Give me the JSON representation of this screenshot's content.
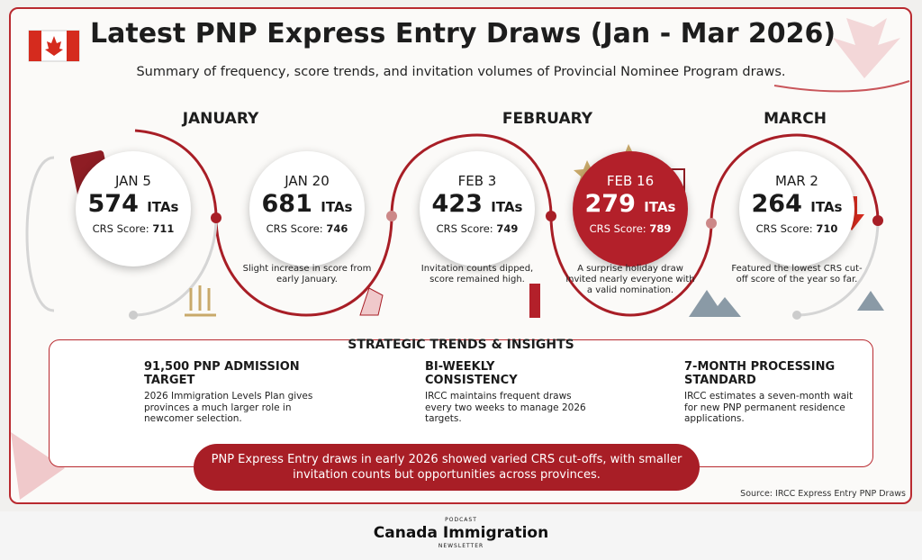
{
  "header": {
    "title": "Latest PNP Express Entry Draws (Jan - Mar 2026)",
    "subtitle": "Summary of frequency, score trends, and invitation volumes of Provincial Nominee Program draws."
  },
  "months": [
    "JANUARY",
    "FEBRUARY",
    "MARCH"
  ],
  "draws": [
    {
      "date": "JAN 5",
      "itas": "574",
      "unit": "ITAs",
      "crs_label": "CRS Score:",
      "crs": "711"
    },
    {
      "date": "JAN 20",
      "itas": "681",
      "unit": "ITAs",
      "crs_label": "CRS Score:",
      "crs": "746",
      "note": "Slight increase in score from early January."
    },
    {
      "date": "FEB 3",
      "itas": "423",
      "unit": "ITAs",
      "crs_label": "CRS Score:",
      "crs": "749",
      "note": "Invitation counts dipped, score remained high."
    },
    {
      "date": "FEB 16",
      "itas": "279",
      "unit": "ITAs",
      "crs_label": "CRS Score:",
      "crs": "789",
      "note": "A surprise holiday draw invited nearly everyone with a valid nomination."
    },
    {
      "date": "MAR 2",
      "itas": "264",
      "unit": "ITAs",
      "crs_label": "CRS Score:",
      "crs": "710",
      "note": "Featured the lowest CRS cut-off score of the year so far."
    }
  ],
  "insights": {
    "title": "STRATEGIC TRENDS & INSIGHTS",
    "items": [
      {
        "heading": "91,500 PNP ADMISSION TARGET",
        "text": "2026 Immigration Levels Plan gives provinces a much larger role in newcomer selection."
      },
      {
        "heading": "BI-WEEKLY CONSISTENCY",
        "text": "IRCC maintains frequent draws every two weeks to manage 2026 targets."
      },
      {
        "heading": "7-MONTH PROCESSING STANDARD",
        "text": "IRCC estimates a seven-month wait for new PNP permanent residence applications."
      }
    ]
  },
  "banner": "PNP Express Entry draws in early 2026 showed varied CRS cut-offs, with smaller invitation counts but opportunities across provinces.",
  "source": "Source: IRCC Express Entry PNP Draws",
  "footer": {
    "top": "PODCAST",
    "name": "Canada Immigration",
    "bottom": "NEWSLETTER"
  }
}
